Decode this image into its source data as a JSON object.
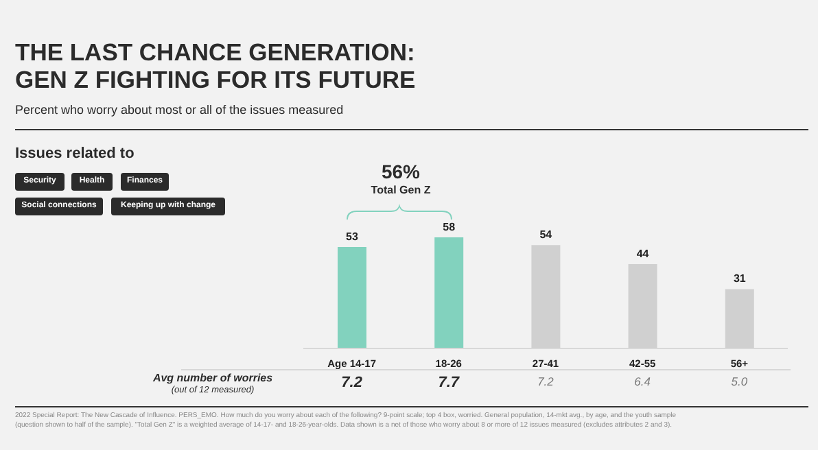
{
  "chart_data": {
    "type": "bar",
    "title": "THE LAST CHANCE GENERATION:\nGEN Z FIGHTING FOR ITS FUTURE",
    "subtitle": "Percent who worry about most or all of the issues measured",
    "categories": [
      "Age 14-17",
      "18-26",
      "27-41",
      "42-55",
      "56+"
    ],
    "values": [
      53,
      58,
      54,
      44,
      31
    ],
    "colors": [
      "#82d2be",
      "#82d2be",
      "#d0d0d0",
      "#d0d0d0",
      "#d0d0d0"
    ],
    "data_labels": true,
    "annotations": [
      "Issues related to",
      "Security",
      "Health",
      "Finances",
      "Social connections",
      "Keeping up with change",
      "56%",
      "Total Gen Z",
      "Avg number of worries",
      "(out of 12 measured)",
      "7.2",
      "7.7",
      "7.2",
      "6.4",
      "5.0",
      "2022 Special Report: The New Cascade of Influence. PERS_EMO. How much do you worry about each of the following? 9-point scale; top 4 box, worried. General population, 14-mkt avg., by age, and the youth sample (question shown to half of the sample). \"Total Gen Z\" is a weighted average of 14-17- and 18-26-year-olds. Data shown is a net of those who worry about 8 or more of 12 issues measured (excludes attributes 2 and 3)."
    ]
  }
}
